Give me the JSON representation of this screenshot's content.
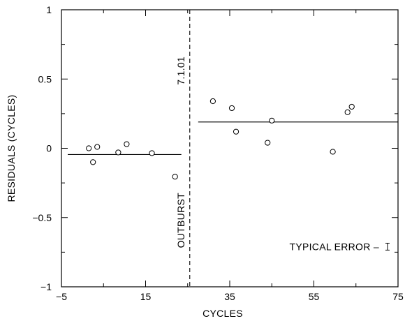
{
  "chart_data": {
    "type": "scatter",
    "title": "",
    "xlabel": "CYCLES",
    "ylabel": "RESIDUALS (CYCLES)",
    "xlim": [
      -5,
      75
    ],
    "ylim": [
      -1,
      1
    ],
    "grid": false,
    "xticks": [
      -5,
      15,
      35,
      55,
      75
    ],
    "xtick_labels": [
      "−5",
      "15",
      "35",
      "55",
      "75"
    ],
    "yticks": [
      -1,
      -0.5,
      0,
      0.5,
      1
    ],
    "ytick_labels": [
      "−1",
      "−0.5",
      "0",
      "0.5",
      "1"
    ],
    "points": [
      {
        "x": 1.5,
        "y": 0.0
      },
      {
        "x": 2.5,
        "y": -0.1
      },
      {
        "x": 3.5,
        "y": 0.01
      },
      {
        "x": 8.5,
        "y": -0.03
      },
      {
        "x": 10.5,
        "y": 0.03
      },
      {
        "x": 16.5,
        "y": -0.035
      },
      {
        "x": 22.0,
        "y": -0.205
      },
      {
        "x": 31.0,
        "y": 0.34
      },
      {
        "x": 35.5,
        "y": 0.29
      },
      {
        "x": 36.5,
        "y": 0.12
      },
      {
        "x": 44.0,
        "y": 0.04
      },
      {
        "x": 45.0,
        "y": 0.2
      },
      {
        "x": 59.5,
        "y": -0.025
      },
      {
        "x": 63.0,
        "y": 0.26
      },
      {
        "x": 64.0,
        "y": 0.3
      }
    ],
    "fit_lines": [
      {
        "x": [
          -3.5,
          23.5
        ],
        "y": [
          -0.045,
          -0.045
        ]
      },
      {
        "x": [
          27.5,
          75
        ],
        "y": [
          0.19,
          0.19
        ]
      }
    ],
    "divider": {
      "x": 25.5,
      "style": "dashed"
    },
    "annotations": {
      "date_label": "7.1.01",
      "event_label": "OUTBURST",
      "error_label": "TYPICAL ERROR –",
      "error_bar_halfwidth": 0.025,
      "error_bar_center": [
        72.5,
        -0.71
      ]
    }
  }
}
